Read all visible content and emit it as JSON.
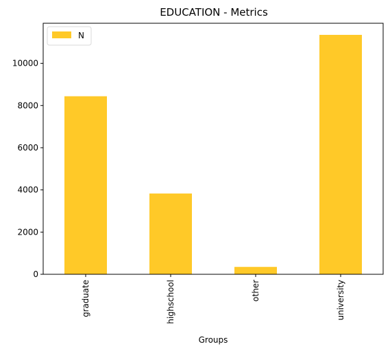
{
  "chart_data": {
    "type": "bar",
    "title": "EDUCATION - Metrics",
    "xlabel": "Groups",
    "ylabel": "",
    "categories": [
      "graduate",
      "highschool",
      "other",
      "university"
    ],
    "series": [
      {
        "name": "N",
        "color": "#ffc928",
        "values": [
          8440,
          3830,
          350,
          11350
        ]
      }
    ],
    "ylim": [
      0,
      11900
    ],
    "yticks": [
      0,
      2000,
      4000,
      6000,
      8000,
      10000
    ],
    "legend_position": "top-left",
    "grid": false
  }
}
